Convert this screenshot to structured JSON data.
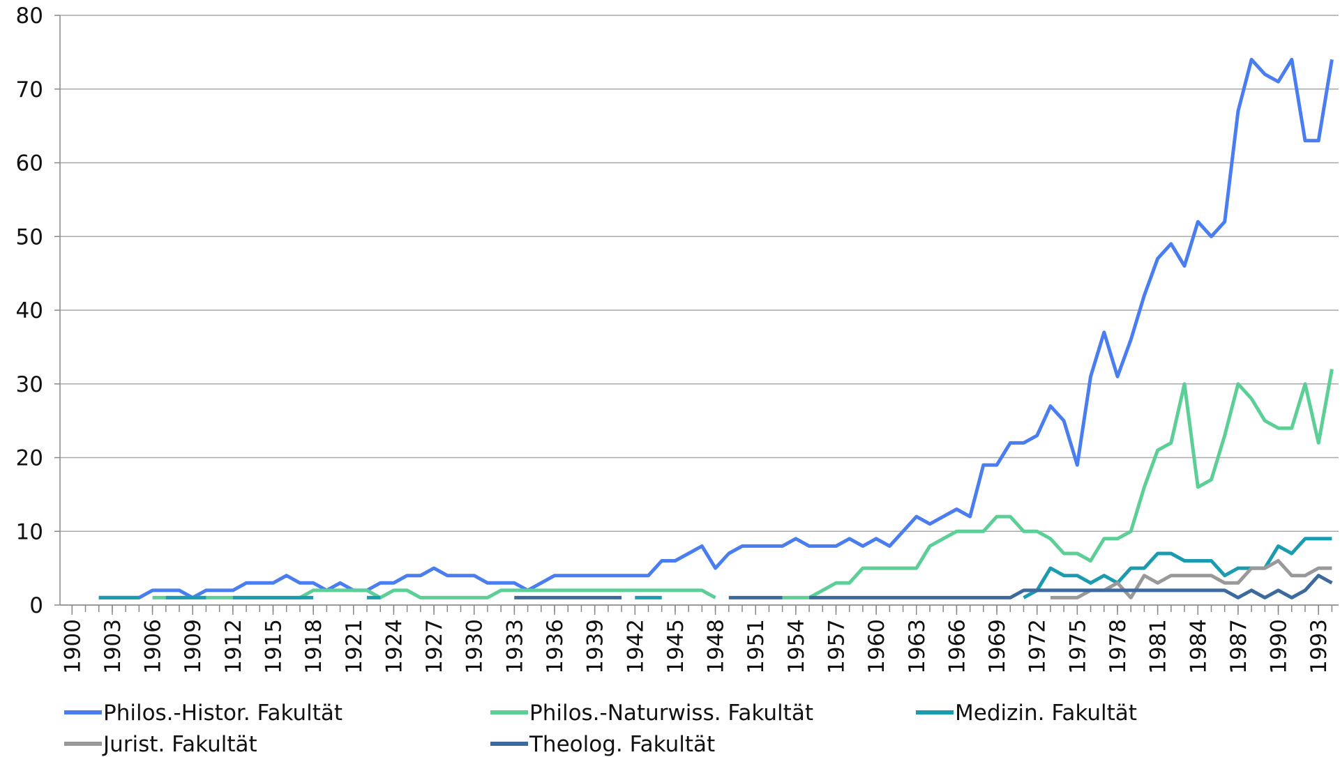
{
  "chart_data": {
    "type": "line",
    "x": [
      1900,
      1901,
      1902,
      1903,
      1904,
      1905,
      1906,
      1907,
      1908,
      1909,
      1910,
      1911,
      1912,
      1913,
      1914,
      1915,
      1916,
      1917,
      1918,
      1919,
      1920,
      1921,
      1922,
      1923,
      1924,
      1925,
      1926,
      1927,
      1928,
      1929,
      1930,
      1931,
      1932,
      1933,
      1934,
      1935,
      1936,
      1937,
      1938,
      1939,
      1940,
      1941,
      1942,
      1943,
      1944,
      1945,
      1946,
      1947,
      1948,
      1949,
      1950,
      1951,
      1952,
      1953,
      1954,
      1955,
      1956,
      1957,
      1958,
      1959,
      1960,
      1961,
      1962,
      1963,
      1964,
      1965,
      1966,
      1967,
      1968,
      1969,
      1970,
      1971,
      1972,
      1973,
      1974,
      1975,
      1976,
      1977,
      1978,
      1979,
      1980,
      1981,
      1982,
      1983,
      1984,
      1985,
      1986,
      1987,
      1988,
      1989,
      1990,
      1991,
      1992,
      1993,
      1994
    ],
    "series": [
      {
        "name": "Philos.-Histor. Fakultät",
        "color": "#4a7ef0",
        "values": [
          null,
          null,
          1,
          1,
          1,
          1,
          2,
          2,
          2,
          1,
          2,
          2,
          2,
          3,
          3,
          3,
          4,
          3,
          3,
          2,
          3,
          2,
          2,
          3,
          3,
          4,
          4,
          5,
          4,
          4,
          4,
          3,
          3,
          3,
          2,
          3,
          4,
          4,
          4,
          4,
          4,
          4,
          4,
          4,
          6,
          6,
          7,
          8,
          5,
          7,
          8,
          8,
          8,
          8,
          9,
          8,
          8,
          8,
          9,
          8,
          9,
          8,
          10,
          12,
          11,
          12,
          13,
          12,
          19,
          19,
          22,
          22,
          23,
          27,
          25,
          19,
          31,
          37,
          31,
          36,
          42,
          47,
          49,
          46,
          52,
          50,
          52,
          67,
          74,
          72,
          71,
          74,
          63,
          63,
          74
        ]
      },
      {
        "name": "Philos.-Naturwiss. Fakultät",
        "color": "#5ccf96",
        "values": [
          null,
          null,
          null,
          null,
          null,
          null,
          1,
          1,
          1,
          1,
          1,
          1,
          1,
          1,
          1,
          1,
          1,
          1,
          2,
          2,
          2,
          2,
          2,
          1,
          2,
          2,
          1,
          1,
          1,
          1,
          1,
          1,
          2,
          2,
          2,
          2,
          2,
          2,
          2,
          2,
          2,
          2,
          2,
          2,
          2,
          2,
          2,
          2,
          1,
          null,
          null,
          null,
          null,
          1,
          1,
          1,
          2,
          3,
          3,
          5,
          5,
          5,
          5,
          5,
          8,
          9,
          10,
          10,
          10,
          12,
          12,
          10,
          10,
          9,
          7,
          7,
          6,
          9,
          9,
          10,
          16,
          21,
          22,
          30,
          16,
          17,
          23,
          30,
          28,
          25,
          24,
          24,
          30,
          22,
          32
        ]
      },
      {
        "name": "Medizin. Fakultät",
        "color": "#1a9bb0",
        "values": [
          null,
          null,
          1,
          1,
          1,
          1,
          null,
          1,
          1,
          1,
          1,
          null,
          1,
          1,
          1,
          1,
          1,
          1,
          1,
          null,
          null,
          null,
          1,
          1,
          null,
          null,
          null,
          null,
          null,
          null,
          null,
          null,
          null,
          null,
          null,
          null,
          null,
          null,
          null,
          null,
          null,
          null,
          1,
          1,
          1,
          null,
          null,
          null,
          null,
          null,
          null,
          null,
          null,
          null,
          null,
          null,
          null,
          null,
          null,
          null,
          null,
          null,
          null,
          null,
          null,
          null,
          null,
          null,
          null,
          null,
          null,
          1,
          2,
          5,
          4,
          4,
          3,
          4,
          3,
          5,
          5,
          7,
          7,
          6,
          6,
          6,
          4,
          5,
          5,
          5,
          8,
          7,
          9,
          9,
          9
        ]
      },
      {
        "name": "Jurist. Fakultät",
        "color": "#999999",
        "values": [
          null,
          null,
          null,
          null,
          null,
          null,
          null,
          null,
          null,
          null,
          null,
          null,
          null,
          null,
          null,
          null,
          null,
          null,
          null,
          null,
          null,
          null,
          null,
          null,
          null,
          null,
          null,
          null,
          null,
          null,
          null,
          null,
          null,
          null,
          null,
          null,
          null,
          null,
          null,
          null,
          null,
          null,
          null,
          null,
          null,
          null,
          null,
          null,
          null,
          null,
          null,
          null,
          null,
          null,
          null,
          null,
          null,
          null,
          null,
          null,
          null,
          null,
          null,
          null,
          null,
          null,
          null,
          null,
          null,
          null,
          null,
          null,
          null,
          1,
          1,
          1,
          2,
          2,
          3,
          1,
          4,
          3,
          4,
          4,
          4,
          4,
          3,
          3,
          5,
          5,
          6,
          4,
          4,
          5,
          5
        ]
      },
      {
        "name": "Theolog. Fakultät",
        "color": "#3c6a9c",
        "values": [
          null,
          null,
          null,
          null,
          null,
          null,
          null,
          null,
          null,
          null,
          null,
          null,
          null,
          null,
          null,
          null,
          null,
          null,
          null,
          null,
          null,
          null,
          null,
          null,
          null,
          null,
          null,
          null,
          null,
          null,
          null,
          null,
          null,
          1,
          1,
          1,
          1,
          1,
          1,
          1,
          1,
          1,
          null,
          null,
          null,
          null,
          null,
          null,
          null,
          1,
          1,
          1,
          1,
          1,
          null,
          1,
          1,
          1,
          1,
          1,
          1,
          1,
          1,
          1,
          1,
          1,
          1,
          1,
          1,
          1,
          1,
          2,
          2,
          2,
          2,
          2,
          2,
          2,
          2,
          2,
          2,
          2,
          2,
          2,
          2,
          2,
          2,
          1,
          2,
          1,
          2,
          1,
          2,
          4,
          3
        ]
      }
    ],
    "xlim": [
      1899.1,
      1994.5
    ],
    "xticks": [
      1900,
      1903,
      1906,
      1909,
      1912,
      1915,
      1918,
      1921,
      1924,
      1927,
      1930,
      1933,
      1936,
      1939,
      1942,
      1945,
      1948,
      1951,
      1954,
      1957,
      1960,
      1963,
      1966,
      1969,
      1972,
      1975,
      1978,
      1981,
      1984,
      1987,
      1990,
      1993
    ],
    "ylim": [
      0,
      80
    ],
    "yticks": [
      0,
      10,
      20,
      30,
      40,
      50,
      60,
      70,
      80
    ],
    "grid": true,
    "legend": "bottom"
  }
}
